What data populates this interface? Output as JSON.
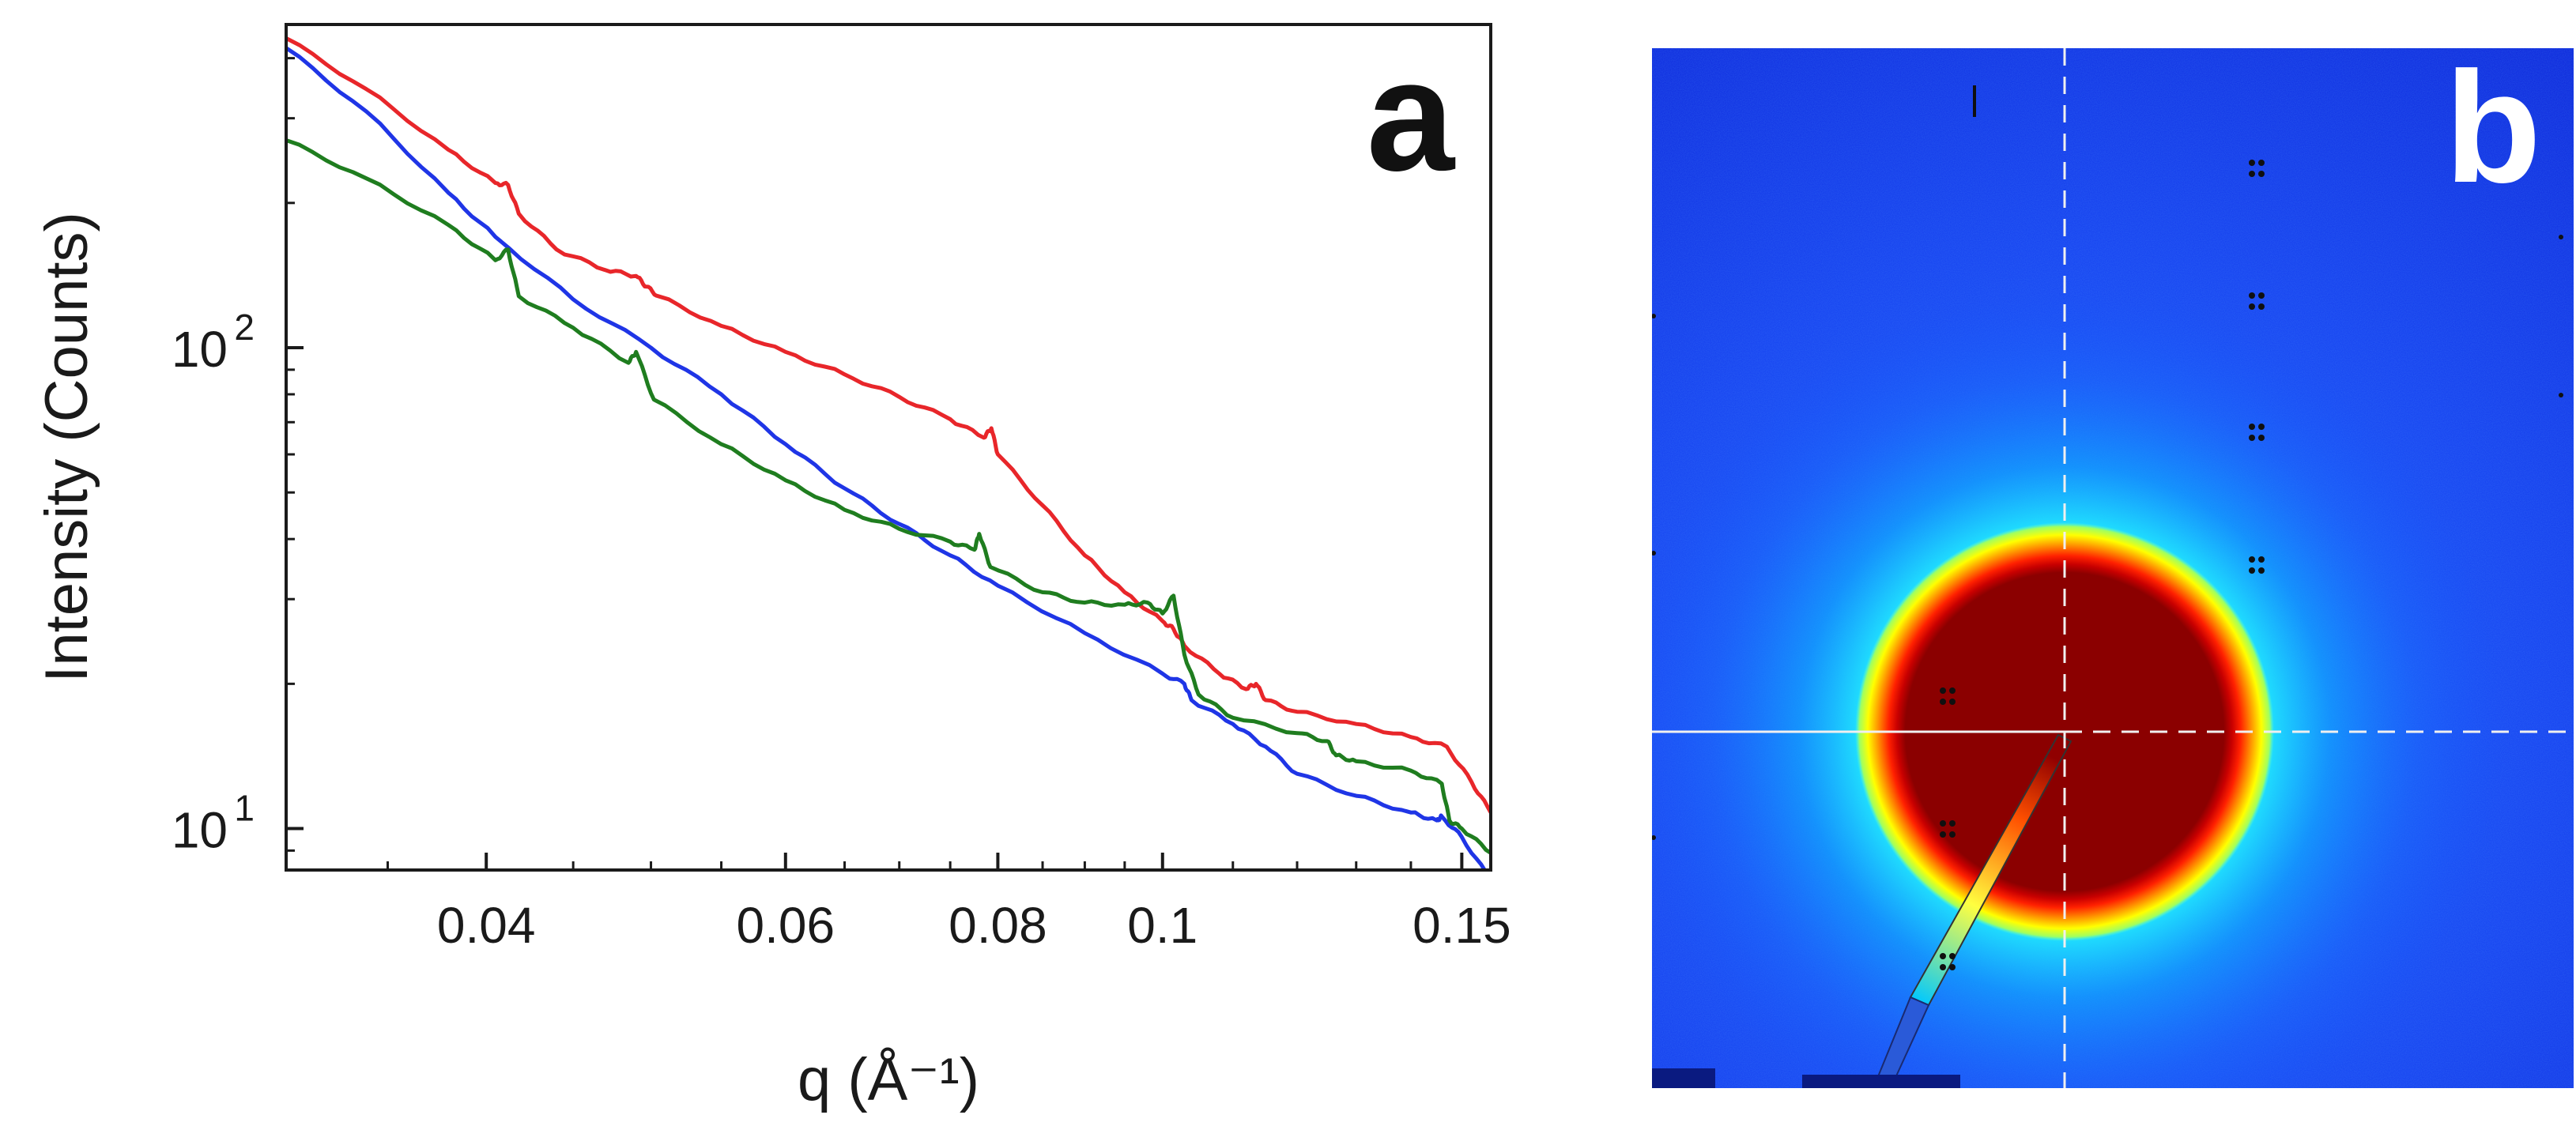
{
  "chart_data": [
    {
      "panel_label": "a",
      "type": "line",
      "x_scale": "log",
      "y_scale": "log",
      "xlabel": "q (Å⁻¹)",
      "ylabel": "Intensity (Counts)",
      "xlim": [
        0.0305,
        0.156
      ],
      "ylim": [
        8.2,
        470
      ],
      "x_ticks": [
        0.04,
        0.06,
        0.08,
        0.1,
        0.15
      ],
      "x_tick_labels": [
        "0.04",
        "0.06",
        "0.08",
        "0.1",
        "0.15"
      ],
      "y_ticks": [
        10,
        100
      ],
      "y_tick_labels": [
        {
          "base": "10",
          "exp": "1"
        },
        {
          "base": "10",
          "exp": "2"
        }
      ],
      "series": [
        {
          "name": "red",
          "color": "#e8262a",
          "x": [
            0.0305,
            0.034,
            0.038,
            0.0405,
            0.0412,
            0.0418,
            0.044,
            0.047,
            0.049,
            0.0497,
            0.0505,
            0.055,
            0.06,
            0.065,
            0.07,
            0.075,
            0.0785,
            0.0793,
            0.08,
            0.085,
            0.09,
            0.095,
            0.1,
            0.1015,
            0.103,
            0.108,
            0.112,
            0.1135,
            0.115,
            0.12,
            0.13,
            0.14,
            0.147,
            0.152,
            0.156
          ],
          "values": [
            440,
            345,
            258,
            220,
            218,
            190,
            160,
            145,
            141,
            134,
            128,
            111,
            98,
            88,
            79,
            71,
            65,
            68,
            60,
            47,
            37,
            31,
            27,
            26,
            24,
            21,
            19.5,
            20,
            18.5,
            17.5,
            16.5,
            15.5,
            14.8,
            12.5,
            10.8
          ]
        },
        {
          "name": "blue",
          "color": "#1f35e6",
          "x": [
            0.0305,
            0.034,
            0.038,
            0.0405,
            0.045,
            0.05,
            0.055,
            0.06,
            0.065,
            0.07,
            0.075,
            0.08,
            0.09,
            0.1,
            0.103,
            0.104,
            0.11,
            0.115,
            0.12,
            0.13,
            0.14,
            0.145,
            0.146,
            0.15,
            0.156
          ],
          "values": [
            420,
            310,
            210,
            170,
            126,
            100,
            80,
            63,
            51,
            43,
            37,
            32,
            25.5,
            21,
            20,
            18.5,
            16.5,
            14.8,
            13,
            11.7,
            10.8,
            10.4,
            10.6,
            9.6,
            7.8
          ]
        },
        {
          "name": "green",
          "color": "#1f7d1f",
          "x": [
            0.0305,
            0.034,
            0.038,
            0.0405,
            0.0412,
            0.0418,
            0.045,
            0.0485,
            0.049,
            0.0502,
            0.055,
            0.06,
            0.065,
            0.07,
            0.075,
            0.0775,
            0.078,
            0.0792,
            0.085,
            0.09,
            0.095,
            0.098,
            0.1,
            0.1015,
            0.103,
            0.105,
            0.11,
            0.12,
            0.125,
            0.1265,
            0.13,
            0.14,
            0.146,
            0.1475,
            0.15,
            0.156
          ],
          "values": [
            270,
            225,
            180,
            152,
            160,
            128,
            110,
            93,
            98,
            78,
            63,
            53,
            46,
            42,
            39.5,
            38,
            41,
            35,
            31,
            29.5,
            29.2,
            29.5,
            28,
            30.5,
            23,
            19,
            17,
            15.8,
            15.2,
            14.2,
            13.8,
            13.2,
            12.4,
            10.4,
            10,
            8.9
          ]
        }
      ]
    },
    {
      "panel_label": "b",
      "type": "heatmap",
      "colormap": [
        "#00007f",
        "#0000ff",
        "#0080ff",
        "#00ffff",
        "#80ff80",
        "#ffff00",
        "#ff8000",
        "#ff0000",
        "#800000"
      ]
    }
  ]
}
